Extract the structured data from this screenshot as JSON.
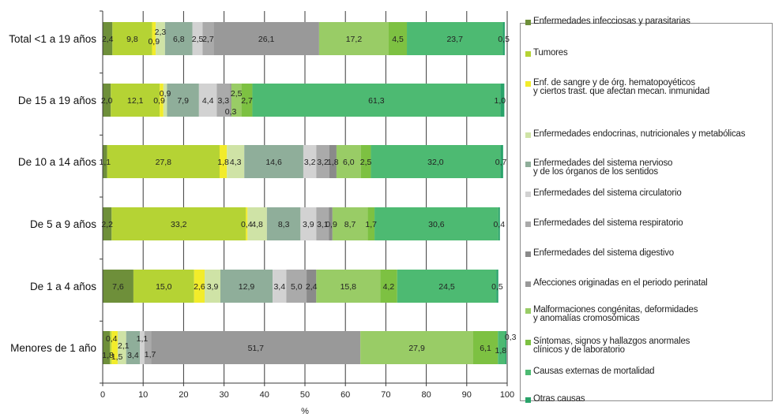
{
  "chart_data": {
    "type": "bar",
    "orientation": "horizontal",
    "stacked": true,
    "xlabel": "%",
    "xlim": [
      0,
      100
    ],
    "xticks": [
      "0",
      "10",
      "20",
      "30",
      "40",
      "50",
      "60",
      "70",
      "80",
      "90",
      "100"
    ],
    "grid": "vertical",
    "legend_position": "right",
    "categories": [
      "Total <1 a 19 años",
      "De 15 a 19 años",
      "De 10 a 14 años",
      "De 5 a 9 años",
      "De 1 a 4 años",
      "Menores de 1 año"
    ],
    "series": [
      {
        "name": "Enfermedades infecciosas y parasitarias",
        "color": "#6e8f3a",
        "values": [
          2.4,
          2.0,
          1.1,
          2.2,
          7.6,
          1.8
        ],
        "labels": [
          "2,4",
          "2,0",
          "1,1",
          "2,2",
          "7,6",
          "1,8"
        ]
      },
      {
        "name": "Tumores",
        "color": "#b5d334",
        "values": [
          9.8,
          12.1,
          27.8,
          33.2,
          15.0,
          0.4
        ],
        "labels": [
          "9,8",
          "12,1",
          "27,8",
          "33,2",
          "15,0",
          "0,4"
        ]
      },
      {
        "name": "Enf. de sangre y de órg. hematopoyéticos\ny ciertos trast. que afectan mecan. inmunidad",
        "color": "#f2ec2a",
        "values": [
          0.9,
          0.9,
          1.8,
          0.4,
          2.6,
          1.5
        ],
        "labels": [
          "0,9",
          "0,9",
          "1,8",
          "0,4",
          "2,6",
          "1,5"
        ]
      },
      {
        "name": "Enfermedades endocrinas, nutricionales y metabólicas",
        "color": "#cfe3a6",
        "values": [
          2.3,
          0.9,
          4.3,
          4.8,
          3.9,
          2.1
        ],
        "labels": [
          "2,3",
          "0,9",
          "4,3",
          "4,8",
          "3,9",
          "2,1"
        ]
      },
      {
        "name": "Enfermedades del sistema nervioso\ny de los órganos de los sentidos",
        "color": "#8fae9a",
        "values": [
          6.8,
          7.9,
          14.6,
          8.3,
          12.9,
          3.4
        ],
        "labels": [
          "6,8",
          "7,9",
          "14,6",
          "8,3",
          "12,9",
          "3,4"
        ]
      },
      {
        "name": "Enfermedades del sistema circulatorio",
        "color": "#d2d2d2",
        "values": [
          2.5,
          4.4,
          3.2,
          3.9,
          3.4,
          1.1
        ],
        "labels": [
          "2,5",
          "4,4",
          "3,2",
          "3,9",
          "3,4",
          "1,1"
        ]
      },
      {
        "name": "Enfermedades del sistema respiratorio",
        "color": "#aaaaaa",
        "values": [
          2.7,
          3.3,
          3.2,
          3.1,
          5.0,
          1.7
        ],
        "labels": [
          "2,7",
          "3,3",
          "3,2",
          "3,1",
          "5,0",
          "1,7"
        ]
      },
      {
        "name": "Enfermedades del sistema digestivo",
        "color": "#8a8a8a",
        "values": [
          0,
          0.3,
          1.8,
          0.9,
          2.4,
          0
        ],
        "labels": [
          "",
          "0,3",
          "1,8",
          "0,9",
          "2,4",
          ""
        ]
      },
      {
        "name": "Afecciones originadas en el periodo perinatal",
        "color": "#999999",
        "values": [
          26.1,
          0,
          0,
          0,
          0,
          51.7
        ],
        "labels": [
          "26,1",
          "",
          "",
          "",
          "",
          "51,7"
        ]
      },
      {
        "name": "Malformaciones congénitas, deformidades\ny anomalías cromosómicas",
        "color": "#99cc66",
        "values": [
          17.2,
          2.5,
          6.0,
          8.7,
          15.8,
          27.9
        ],
        "labels": [
          "17,2",
          "2,5",
          "6,0",
          "8,7",
          "15,8",
          "27,9"
        ]
      },
      {
        "name": "Síntomas, signos y hallazgos anormales\nclínicos y de laboratorio",
        "color": "#7dc142",
        "values": [
          4.5,
          2.7,
          2.5,
          1.7,
          4.2,
          6.1
        ],
        "labels": [
          "4,5",
          "2,7",
          "2,5",
          "1,7",
          "4,2",
          "6,1"
        ]
      },
      {
        "name": "Causas externas de mortalidad",
        "color": "#4dba72",
        "values": [
          23.7,
          61.3,
          32.0,
          30.6,
          24.5,
          1.8
        ],
        "labels": [
          "23,7",
          "61,3",
          "32,0",
          "30,6",
          "24,5",
          "1,8"
        ]
      },
      {
        "name": "Otras causas",
        "color": "#2aa36a",
        "values": [
          0.5,
          1.0,
          0.7,
          0.4,
          0.5,
          0.3
        ],
        "labels": [
          "0,5",
          "1,0",
          "0,7",
          "0,4",
          "0,5",
          "0,3"
        ]
      }
    ]
  }
}
